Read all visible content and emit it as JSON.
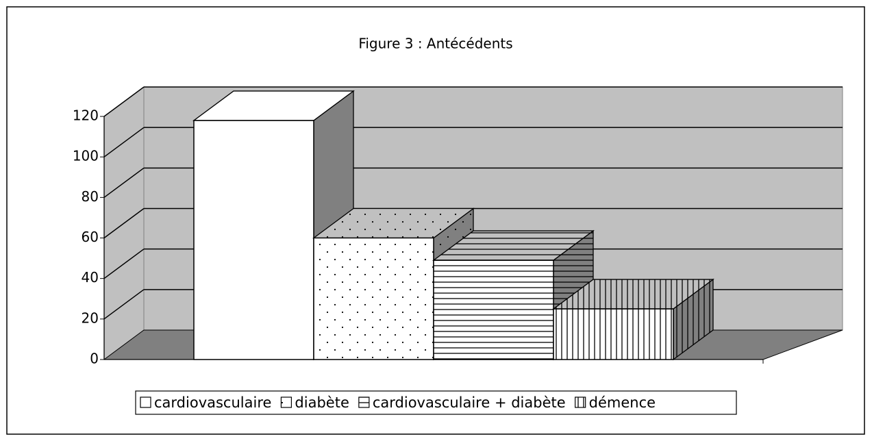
{
  "chart_data": {
    "type": "bar3d",
    "title": "Figure 3 : Antécédents",
    "series": [
      {
        "name": "cardiovasculaire",
        "color": "#ffffff",
        "pattern": "none",
        "values": [
          118
        ]
      },
      {
        "name": "diabète",
        "color": "#ffffff",
        "pattern": "dots",
        "values": [
          60
        ]
      },
      {
        "name": "cardiovasculaire + diabète",
        "color": "#ffffff",
        "pattern": "hlines",
        "values": [
          49
        ]
      },
      {
        "name": "démence",
        "color": "#ffffff",
        "pattern": "vlines",
        "values": [
          25
        ]
      }
    ],
    "ylim": [
      0,
      120
    ],
    "yticks": [
      0,
      20,
      40,
      60,
      80,
      100,
      120
    ],
    "grid": true,
    "legend": "bottom"
  }
}
